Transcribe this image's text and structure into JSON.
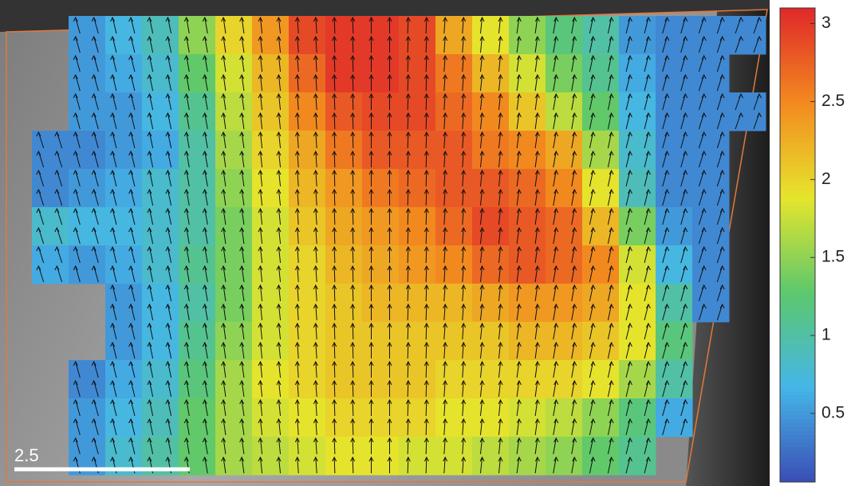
{
  "chart_data": {
    "type": "heatmap",
    "values": [
      [
        null,
        0.5,
        0.7,
        0.9,
        1.5,
        2.0,
        2.4,
        2.9,
        3.0,
        3.0,
        2.9,
        2.3,
        1.9,
        1.5,
        1.2,
        1.0,
        0.5,
        0.4,
        0.4,
        0.4
      ],
      [
        null,
        0.5,
        0.6,
        0.8,
        1.3,
        1.8,
        2.2,
        2.7,
        3.0,
        3.0,
        2.9,
        2.6,
        2.2,
        1.8,
        1.4,
        1.1,
        0.6,
        0.4,
        0.4,
        null
      ],
      [
        null,
        0.5,
        0.5,
        0.7,
        1.1,
        1.7,
        2.1,
        2.5,
        2.8,
        2.9,
        2.9,
        2.7,
        2.5,
        2.1,
        1.7,
        1.3,
        0.7,
        0.4,
        0.4,
        0.4
      ],
      [
        0.4,
        0.4,
        0.5,
        0.6,
        1.0,
        1.6,
        2.0,
        2.3,
        2.6,
        2.8,
        2.8,
        2.8,
        2.6,
        2.5,
        2.3,
        1.6,
        0.8,
        0.4,
        0.4,
        null
      ],
      [
        0.4,
        0.5,
        0.6,
        0.8,
        1.0,
        1.5,
        1.9,
        2.2,
        2.4,
        2.6,
        2.7,
        2.8,
        2.8,
        2.7,
        2.5,
        1.9,
        0.9,
        0.4,
        0.4,
        null
      ],
      [
        0.8,
        0.7,
        0.7,
        0.8,
        1.0,
        1.4,
        1.8,
        2.1,
        2.3,
        2.4,
        2.5,
        2.7,
        2.9,
        2.8,
        2.7,
        2.2,
        1.4,
        0.5,
        0.4,
        null
      ],
      [
        0.6,
        0.5,
        0.6,
        0.8,
        1.1,
        1.4,
        1.8,
        2.0,
        2.2,
        2.3,
        2.4,
        2.5,
        2.7,
        2.8,
        2.7,
        2.5,
        1.8,
        0.7,
        0.4,
        null
      ],
      [
        null,
        null,
        0.5,
        0.7,
        1.0,
        1.4,
        1.8,
        2.0,
        2.1,
        2.2,
        2.2,
        2.2,
        2.3,
        2.4,
        2.4,
        2.3,
        1.9,
        1.0,
        0.4,
        null
      ],
      [
        null,
        null,
        0.5,
        0.7,
        1.1,
        1.5,
        1.8,
        2.0,
        2.1,
        2.1,
        2.1,
        2.1,
        2.1,
        2.2,
        2.2,
        2.1,
        1.9,
        1.2,
        null,
        null
      ],
      [
        null,
        0.4,
        0.6,
        0.8,
        1.2,
        1.6,
        1.9,
        2.0,
        2.1,
        2.1,
        2.1,
        2.0,
        2.0,
        2.0,
        2.0,
        1.9,
        1.6,
        1.0,
        null,
        null
      ],
      [
        null,
        0.5,
        0.7,
        0.9,
        1.3,
        1.6,
        1.8,
        1.9,
        2.0,
        2.0,
        2.0,
        1.9,
        1.9,
        1.8,
        1.7,
        1.5,
        1.2,
        0.6,
        null,
        null
      ],
      [
        null,
        0.5,
        0.8,
        1.0,
        1.3,
        1.6,
        1.7,
        1.8,
        1.9,
        1.9,
        1.8,
        1.8,
        1.7,
        1.6,
        1.5,
        1.3,
        1.1,
        null,
        null,
        null
      ]
    ],
    "zlim": [
      0.06,
      3.1
    ],
    "colorbar_ticks": [
      0.5,
      1,
      1.5,
      2,
      2.5,
      3
    ],
    "colormap": [
      "#3a4db5",
      "#45b6e8",
      "#5cc86c",
      "#e6e52c",
      "#f28a1f",
      "#e0292a"
    ],
    "scale_bar_label": "2.5"
  }
}
